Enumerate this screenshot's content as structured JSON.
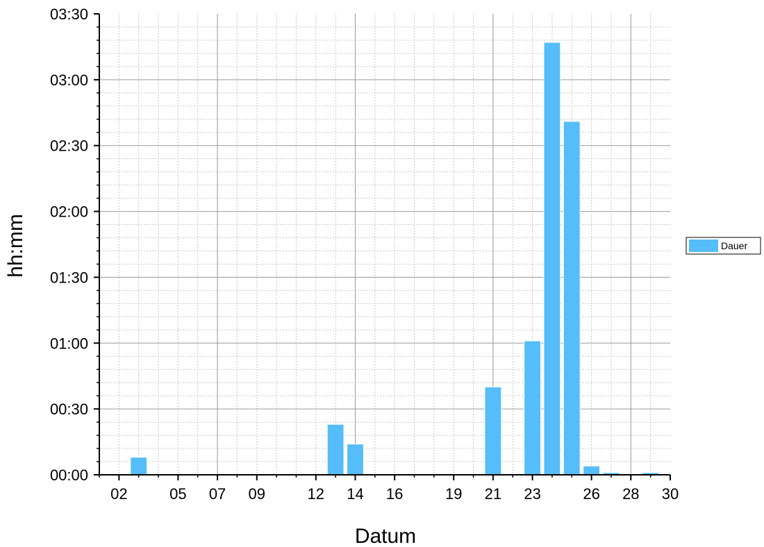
{
  "chart_data": {
    "type": "bar",
    "title": "",
    "xlabel": "Datum",
    "ylabel": "hh:mm",
    "x_tick_labels": [
      {
        "day": 2,
        "label": "02"
      },
      {
        "day": 5,
        "label": "05"
      },
      {
        "day": 7,
        "label": "07"
      },
      {
        "day": 9,
        "label": "09"
      },
      {
        "day": 12,
        "label": "12"
      },
      {
        "day": 14,
        "label": "14"
      },
      {
        "day": 16,
        "label": "16"
      },
      {
        "day": 19,
        "label": "19"
      },
      {
        "day": 21,
        "label": "21"
      },
      {
        "day": 23,
        "label": "23"
      },
      {
        "day": 26,
        "label": "26"
      },
      {
        "day": 28,
        "label": "28"
      },
      {
        "day": 30,
        "label": "30"
      }
    ],
    "y_tick_labels": [
      {
        "minutes": 0,
        "label": "00:00"
      },
      {
        "minutes": 30,
        "label": "00:30"
      },
      {
        "minutes": 60,
        "label": "01:00"
      },
      {
        "minutes": 90,
        "label": "01:30"
      },
      {
        "minutes": 120,
        "label": "02:00"
      },
      {
        "minutes": 150,
        "label": "02:30"
      },
      {
        "minutes": 180,
        "label": "03:00"
      },
      {
        "minutes": 210,
        "label": "03:30"
      }
    ],
    "xlim": [
      1,
      30
    ],
    "ylim": [
      "00:00",
      "03:30"
    ],
    "major_grid_days": [
      7,
      14,
      21,
      28
    ],
    "grid": true,
    "legend_position": "right",
    "series": [
      {
        "name": "Dauer",
        "color": "#55bdf9",
        "points": [
          {
            "day": 3,
            "value": "00:08",
            "minutes": 8
          },
          {
            "day": 13,
            "value": "00:23",
            "minutes": 23
          },
          {
            "day": 14,
            "value": "00:14",
            "minutes": 14
          },
          {
            "day": 21,
            "value": "00:40",
            "minutes": 40
          },
          {
            "day": 23,
            "value": "01:01",
            "minutes": 61
          },
          {
            "day": 24,
            "value": "03:17",
            "minutes": 197
          },
          {
            "day": 25,
            "value": "02:41",
            "minutes": 161
          },
          {
            "day": 26,
            "value": "00:04",
            "minutes": 4
          },
          {
            "day": 27,
            "value": "00:01",
            "minutes": 1
          },
          {
            "day": 29,
            "value": "00:01",
            "minutes": 1
          }
        ]
      }
    ]
  }
}
